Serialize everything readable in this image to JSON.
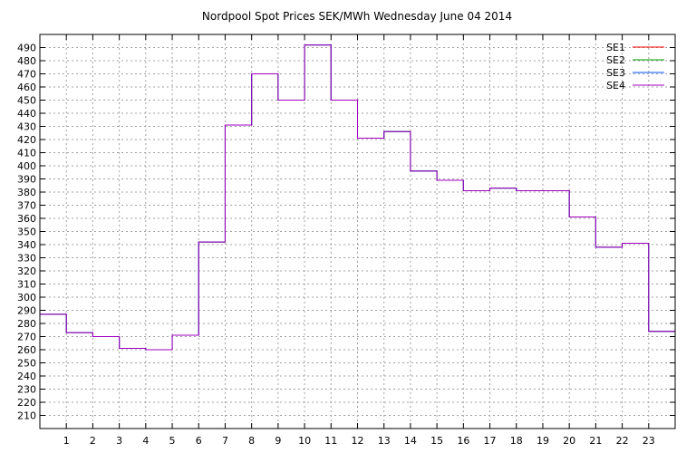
{
  "chart_data": {
    "type": "line",
    "title": "Nordpool Spot Prices SEK/MWh Wednesday June 04 2014",
    "xlabel": "",
    "ylabel": "",
    "x": [
      0,
      1,
      2,
      3,
      4,
      5,
      6,
      7,
      8,
      9,
      10,
      11,
      12,
      13,
      14,
      15,
      16,
      17,
      18,
      19,
      20,
      21,
      22,
      23
    ],
    "x_ticks": [
      "1",
      "2",
      "3",
      "4",
      "5",
      "6",
      "7",
      "8",
      "9",
      "10",
      "11",
      "12",
      "13",
      "14",
      "15",
      "16",
      "17",
      "18",
      "19",
      "20",
      "21",
      "22",
      "23"
    ],
    "y_ticks": [
      "210",
      "220",
      "230",
      "240",
      "250",
      "260",
      "270",
      "280",
      "290",
      "300",
      "310",
      "320",
      "330",
      "340",
      "350",
      "360",
      "370",
      "380",
      "390",
      "400",
      "410",
      "420",
      "430",
      "440",
      "450",
      "460",
      "470",
      "480",
      "490"
    ],
    "xlim": [
      0,
      24
    ],
    "ylim": [
      200,
      500
    ],
    "grid": true,
    "legend_position": "top-right",
    "series": [
      {
        "name": "SE1",
        "color": "#ff0000",
        "values": [
          287,
          273,
          270,
          261,
          260,
          271,
          342,
          431,
          470,
          450,
          492,
          450,
          421,
          426,
          396,
          389,
          381,
          383,
          381,
          381,
          361,
          338,
          341,
          274
        ]
      },
      {
        "name": "SE2",
        "color": "#00a000",
        "values": [
          287,
          273,
          270,
          261,
          260,
          271,
          342,
          431,
          470,
          450,
          492,
          450,
          421,
          426,
          396,
          389,
          381,
          383,
          381,
          381,
          361,
          338,
          341,
          274
        ]
      },
      {
        "name": "SE3",
        "color": "#0050ff",
        "values": [
          287,
          273,
          270,
          261,
          260,
          271,
          342,
          431,
          470,
          450,
          492,
          450,
          421,
          426,
          396,
          389,
          381,
          383,
          381,
          381,
          361,
          338,
          341,
          274
        ]
      },
      {
        "name": "SE4",
        "color": "#a000c0",
        "values": [
          287,
          273,
          270,
          261,
          260,
          271,
          342,
          431,
          470,
          450,
          492,
          450,
          421,
          426,
          396,
          389,
          381,
          383,
          381,
          381,
          361,
          338,
          341,
          274
        ]
      }
    ]
  }
}
